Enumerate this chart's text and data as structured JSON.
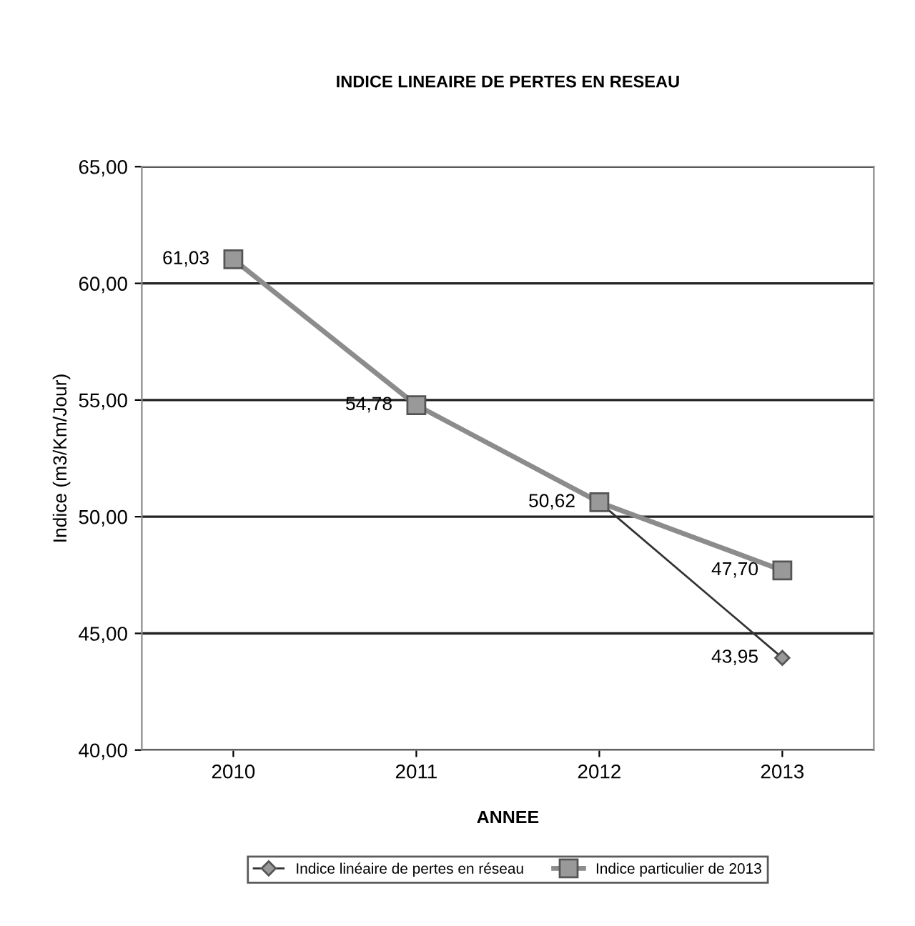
{
  "chart_data": {
    "type": "line",
    "title": "INDICE LINEAIRE DE PERTES EN RESEAU",
    "xlabel": "ANNEE",
    "ylabel": "Indice (m3/Km/Jour)",
    "categories": [
      "2010",
      "2011",
      "2012",
      "2013"
    ],
    "series": [
      {
        "name": "Indice linéaire de pertes en réseau",
        "color": "#333333",
        "marker": "diamond",
        "values": [
          61.03,
          54.78,
          50.62,
          43.95
        ],
        "value_labels": [
          null,
          null,
          null,
          "43,95"
        ]
      },
      {
        "name": "Indice particulier de 2013",
        "color": "#8c8c8c",
        "marker": "square",
        "values": [
          61.03,
          54.78,
          50.62,
          47.7
        ],
        "value_labels": [
          "61,03",
          "54,78",
          "50,62",
          "47,70"
        ]
      }
    ],
    "ylim": [
      40,
      65
    ],
    "yticks": [
      {
        "value": 40,
        "label": "40,00"
      },
      {
        "value": 45,
        "label": "45,00"
      },
      {
        "value": 50,
        "label": "50,00"
      },
      {
        "value": 55,
        "label": "55,00"
      },
      {
        "value": 60,
        "label": "60,00"
      },
      {
        "value": 65,
        "label": "65,00"
      }
    ],
    "grid": "y",
    "legend": "bottom"
  }
}
